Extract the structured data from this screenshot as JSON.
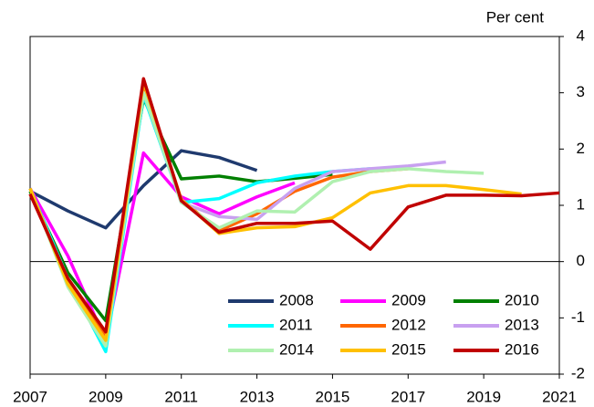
{
  "chart_data": {
    "type": "line",
    "y_axis_label": "Per cent",
    "xlim": [
      2007,
      2021
    ],
    "xticks": [
      2007,
      2009,
      2011,
      2013,
      2015,
      2017,
      2019,
      2021
    ],
    "ylim": [
      -2,
      4
    ],
    "yticks": [
      -2,
      -1,
      0,
      1,
      2,
      3,
      4
    ],
    "grid": false,
    "legend": "lower right",
    "series": [
      {
        "name": "2008",
        "color": "#1f3a6e",
        "x": [
          2007,
          2008,
          2009,
          2010,
          2011,
          2012,
          2013
        ],
        "values": [
          1.25,
          0.9,
          0.6,
          1.35,
          1.97,
          1.85,
          1.62
        ]
      },
      {
        "name": "2009",
        "color": "#ff00ff",
        "x": [
          2007,
          2008,
          2009,
          2010,
          2011,
          2012,
          2013,
          2014
        ],
        "values": [
          1.3,
          0.1,
          -1.4,
          1.93,
          1.15,
          0.85,
          1.15,
          1.4
        ]
      },
      {
        "name": "2010",
        "color": "#008000",
        "x": [
          2007,
          2008,
          2009,
          2010,
          2011,
          2012,
          2013,
          2014,
          2015
        ],
        "values": [
          1.25,
          -0.2,
          -1.05,
          2.9,
          1.47,
          1.52,
          1.42,
          1.48,
          1.55
        ]
      },
      {
        "name": "2011",
        "color": "#00ffff",
        "x": [
          2007,
          2008,
          2009,
          2010,
          2011,
          2012,
          2013,
          2014,
          2015,
          2016
        ],
        "values": [
          1.3,
          -0.3,
          -1.6,
          2.95,
          1.05,
          1.12,
          1.4,
          1.52,
          1.6,
          1.65
        ]
      },
      {
        "name": "2012",
        "color": "#ff6600",
        "x": [
          2007,
          2008,
          2009,
          2010,
          2011,
          2012,
          2013,
          2014,
          2015,
          2016,
          2017
        ],
        "values": [
          1.3,
          -0.4,
          -1.3,
          3.1,
          1.1,
          0.55,
          0.85,
          1.25,
          1.5,
          1.6,
          1.65
        ]
      },
      {
        "name": "2013",
        "color": "#c8a0f0",
        "x": [
          2007,
          2008,
          2009,
          2010,
          2011,
          2012,
          2013,
          2014,
          2015,
          2016,
          2017,
          2018
        ],
        "values": [
          1.3,
          -0.4,
          -1.4,
          3.0,
          1.05,
          0.8,
          0.75,
          1.3,
          1.6,
          1.65,
          1.7,
          1.77
        ]
      },
      {
        "name": "2014",
        "color": "#b0f0b0",
        "x": [
          2007,
          2008,
          2009,
          2010,
          2011,
          2012,
          2013,
          2014,
          2015,
          2016,
          2017,
          2018,
          2019
        ],
        "values": [
          1.3,
          -0.45,
          -1.5,
          3.0,
          1.05,
          0.6,
          0.9,
          0.88,
          1.42,
          1.6,
          1.65,
          1.6,
          1.57
        ]
      },
      {
        "name": "2015",
        "color": "#ffc000",
        "x": [
          2007,
          2008,
          2009,
          2010,
          2011,
          2012,
          2013,
          2014,
          2015,
          2016,
          2017,
          2018,
          2019,
          2020
        ],
        "values": [
          1.3,
          -0.4,
          -1.4,
          3.2,
          1.1,
          0.5,
          0.6,
          0.62,
          0.78,
          1.22,
          1.35,
          1.35,
          1.28,
          1.2
        ]
      },
      {
        "name": "2016",
        "color": "#c00000",
        "x": [
          2007,
          2008,
          2009,
          2010,
          2011,
          2012,
          2013,
          2014,
          2015,
          2016,
          2017,
          2018,
          2019,
          2020,
          2021
        ],
        "values": [
          1.2,
          -0.3,
          -1.25,
          3.25,
          1.08,
          0.52,
          0.68,
          0.68,
          0.72,
          0.22,
          0.97,
          1.18,
          1.18,
          1.17,
          1.22
        ]
      }
    ]
  }
}
